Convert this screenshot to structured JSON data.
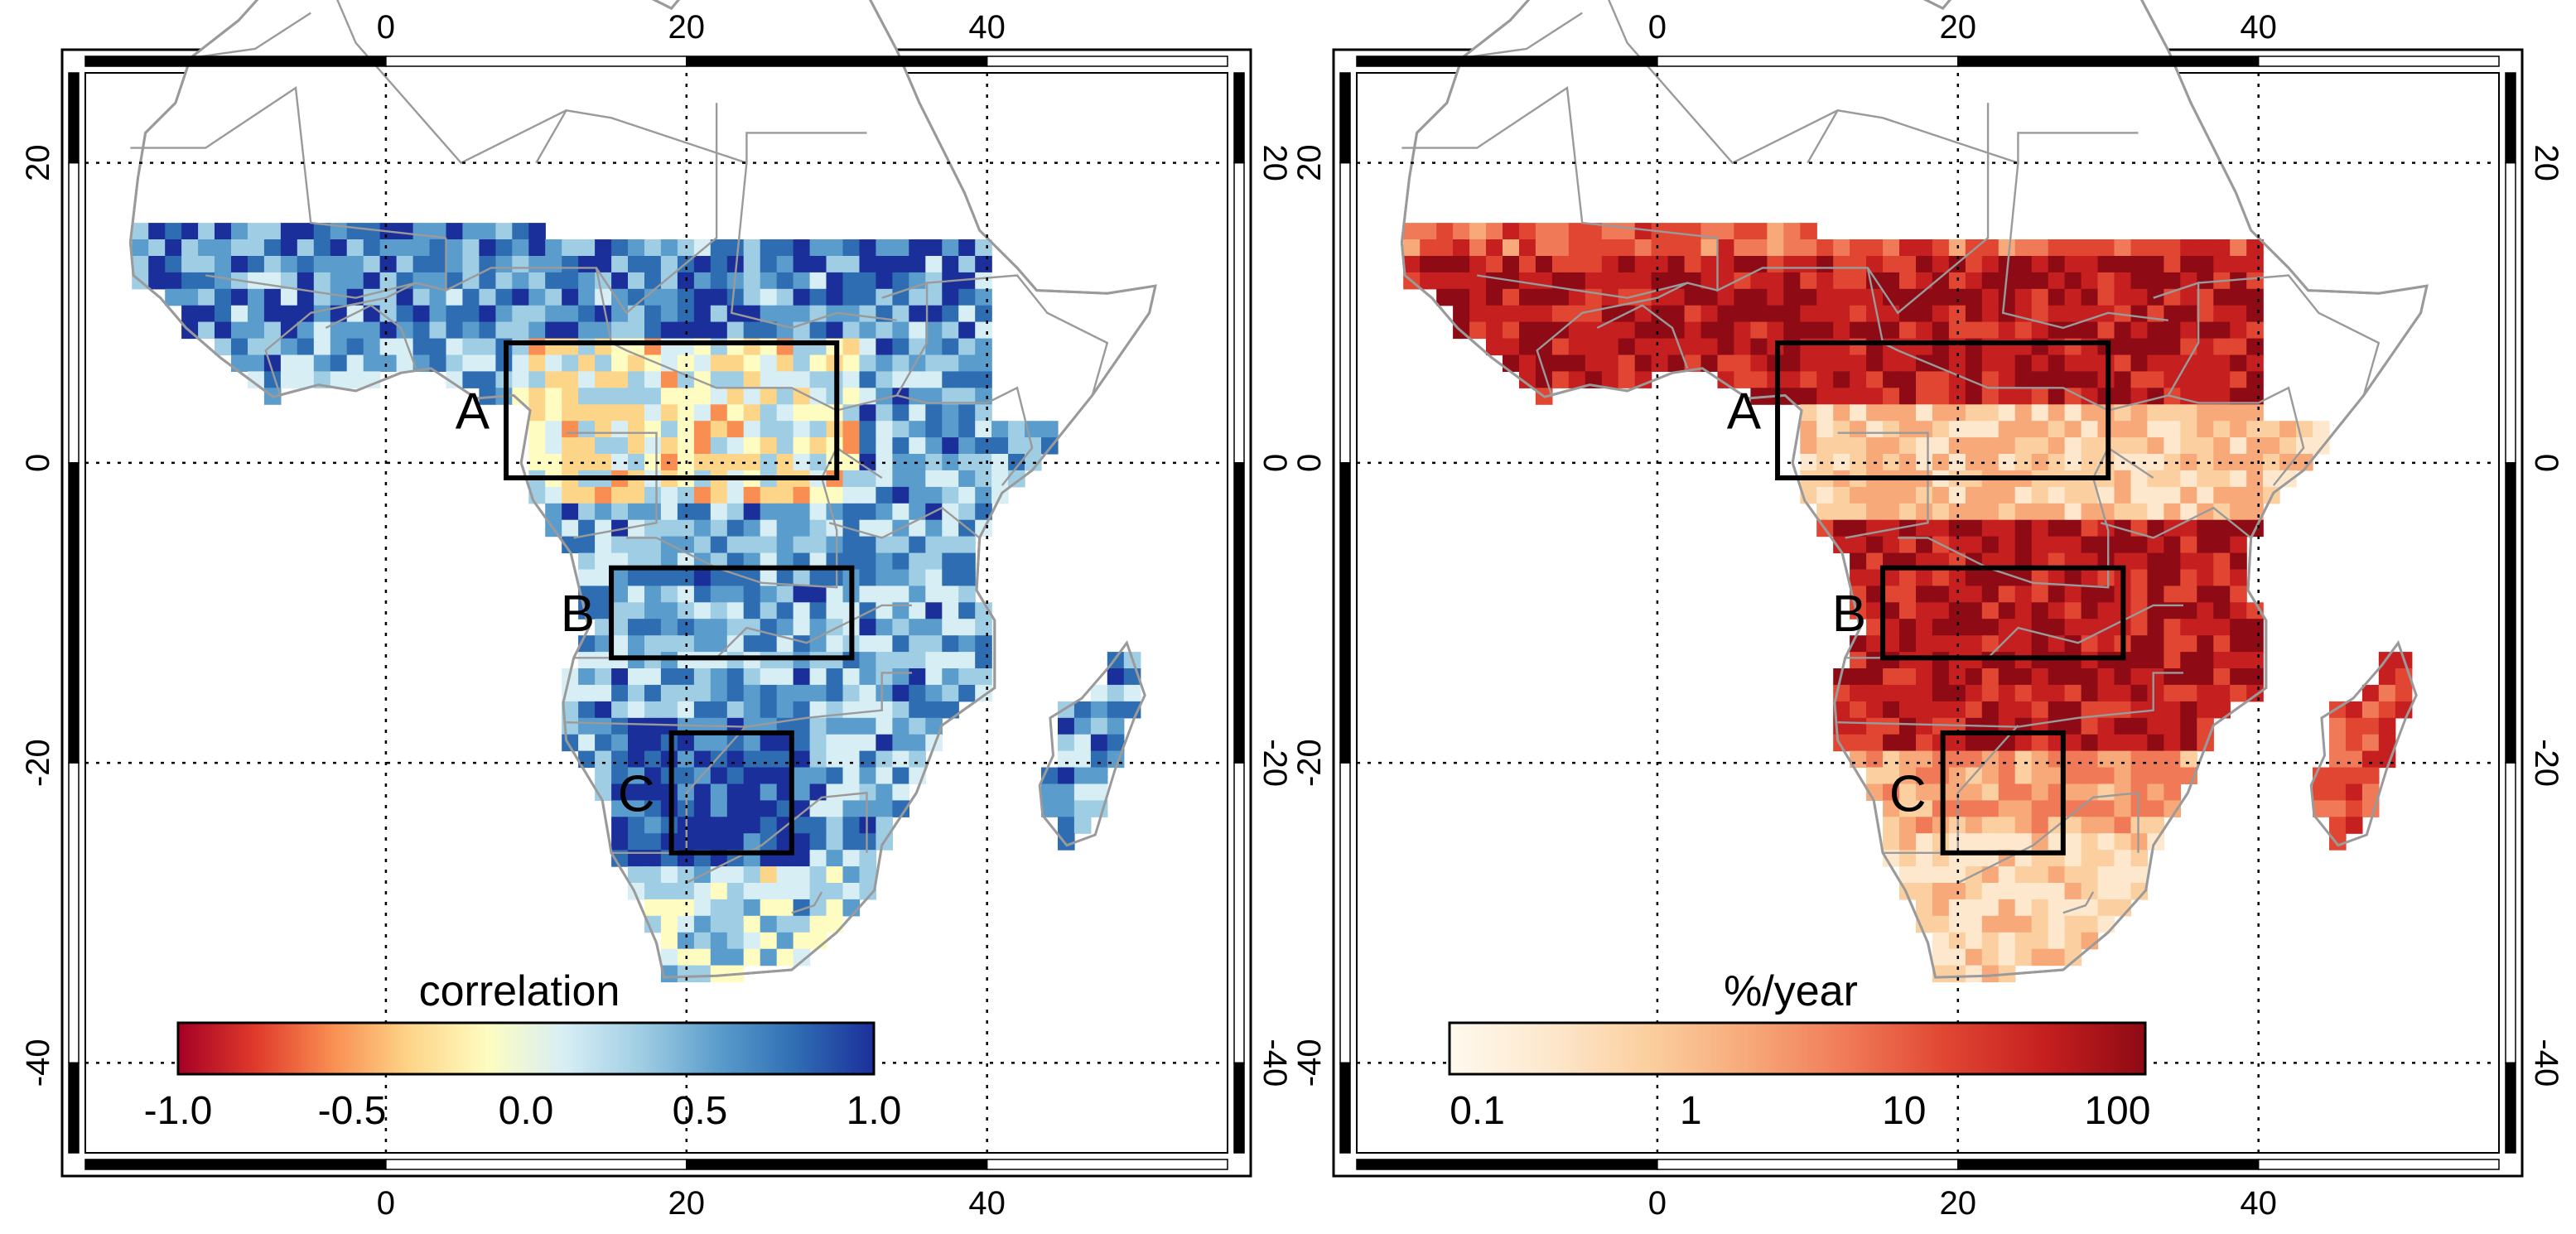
{
  "panels": [
    {
      "id": "correlation",
      "colorbar": {
        "title": "correlation",
        "scale": "linear",
        "ticks": [
          "-1.0",
          "-0.5",
          "0.0",
          "0.5",
          "1.0"
        ],
        "colors": [
          "#a50026",
          "#e03a2b",
          "#f98e52",
          "#fdd589",
          "#fefcc0",
          "#d7eef5",
          "#9fcde3",
          "#5a9ccb",
          "#2f6db3",
          "#1b2f9b"
        ]
      },
      "regions": [
        {
          "label": "A",
          "lon": [
            8,
            30
          ],
          "lat": [
            -1,
            8
          ]
        },
        {
          "label": "B",
          "lon": [
            15,
            31
          ],
          "lat": [
            -13,
            -7
          ]
        },
        {
          "label": "C",
          "lon": [
            19,
            27
          ],
          "lat": [
            -26,
            -18
          ]
        }
      ],
      "map_fill": {
        "land": "#8fbfe0",
        "north": "#3f6fc0",
        "interior": "#f3e6a4",
        "south": "#2f4fb0"
      }
    },
    {
      "id": "burned-area",
      "colorbar": {
        "title": "%/year",
        "scale": "log",
        "ticks": [
          "0.1",
          "1",
          "10",
          "100"
        ],
        "colors": [
          "#fff9ee",
          "#fde8cd",
          "#fbcf9f",
          "#f7a97a",
          "#f07a58",
          "#e04632",
          "#c51f1f",
          "#8e0a14"
        ]
      },
      "regions": [
        {
          "label": "A",
          "lon": [
            8,
            30
          ],
          "lat": [
            -1,
            8
          ]
        },
        {
          "label": "B",
          "lon": [
            15,
            31
          ],
          "lat": [
            -13,
            -7
          ]
        },
        {
          "label": "C",
          "lon": [
            19,
            27
          ],
          "lat": [
            -26,
            -18
          ]
        }
      ],
      "map_fill": {
        "land": "#f8c6a0",
        "north": "#c91e1e",
        "interior": "#fde0c0",
        "south": "#cf2a20"
      }
    }
  ],
  "axes": {
    "lon_ticks": [
      0,
      20,
      40
    ],
    "lat_ticks": [
      20,
      0,
      -20,
      -40
    ],
    "lon_range": [
      -20,
      56
    ],
    "lat_range": [
      -46,
      26
    ]
  }
}
